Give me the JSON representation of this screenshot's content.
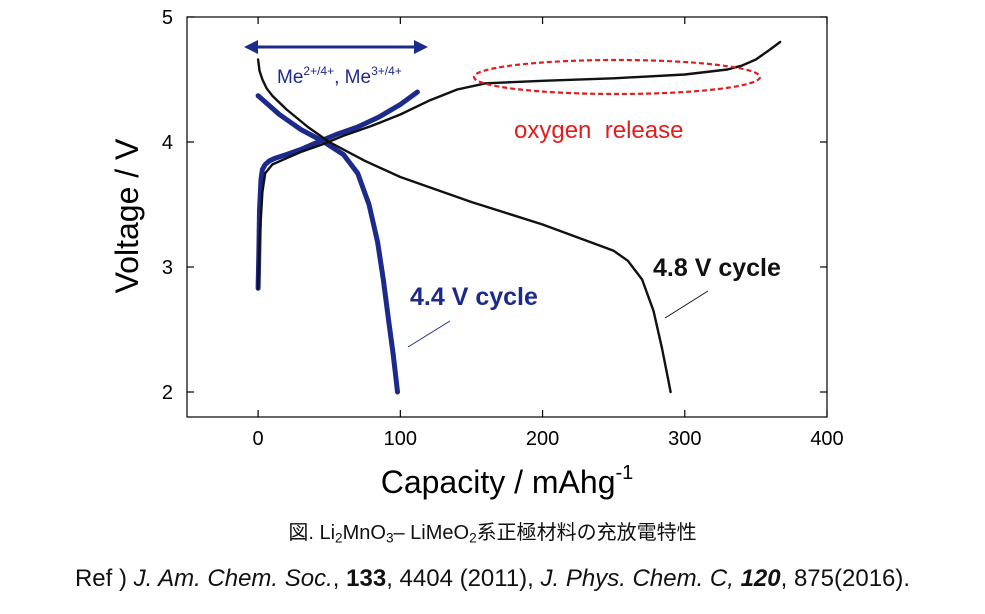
{
  "chart_data": {
    "type": "line",
    "xlabel": "Capacity / mAhg",
    "xlabel_sup": "-1",
    "ylabel": "Voltage / V",
    "xlim": [
      -50,
      400
    ],
    "ylim": [
      1.8,
      5
    ],
    "xticks": [
      0,
      100,
      200,
      300,
      400
    ],
    "yticks": [
      2,
      3,
      4,
      5
    ],
    "grid": false,
    "series": [
      {
        "name": "4.4 V cycle (charge)",
        "color": "#1c2a8c",
        "x": [
          0,
          0.5,
          1,
          2,
          3,
          5,
          8,
          12,
          20,
          30,
          40,
          55,
          70,
          85,
          100,
          112
        ],
        "y": [
          2.83,
          3.1,
          3.45,
          3.7,
          3.78,
          3.82,
          3.85,
          3.87,
          3.9,
          3.94,
          3.99,
          4.06,
          4.12,
          4.2,
          4.3,
          4.4
        ]
      },
      {
        "name": "4.4 V cycle (discharge)",
        "color": "#1c2a8c",
        "x": [
          0,
          5,
          15,
          30,
          45,
          60,
          70,
          78,
          84,
          88,
          92,
          95,
          97,
          98
        ],
        "y": [
          4.37,
          4.32,
          4.22,
          4.1,
          4.01,
          3.9,
          3.75,
          3.5,
          3.2,
          2.9,
          2.55,
          2.3,
          2.1,
          2.0
        ]
      },
      {
        "name": "4.8 V cycle (charge)",
        "color": "#111111",
        "x": [
          0,
          1,
          3,
          5,
          10,
          20,
          30,
          45,
          60,
          80,
          100,
          120,
          140,
          160,
          200,
          250,
          300,
          330,
          340,
          350,
          360,
          367
        ],
        "y": [
          2.83,
          3.2,
          3.6,
          3.75,
          3.82,
          3.87,
          3.92,
          3.98,
          4.05,
          4.13,
          4.22,
          4.33,
          4.42,
          4.47,
          4.49,
          4.51,
          4.54,
          4.58,
          4.61,
          4.66,
          4.74,
          4.8
        ]
      },
      {
        "name": "4.8 V cycle (discharge)",
        "color": "#111111",
        "x": [
          0,
          1,
          3,
          6,
          10,
          20,
          35,
          50,
          75,
          100,
          150,
          200,
          250,
          260,
          270,
          278,
          284,
          288,
          290
        ],
        "y": [
          4.66,
          4.57,
          4.5,
          4.43,
          4.37,
          4.26,
          4.12,
          4.0,
          3.85,
          3.72,
          3.52,
          3.34,
          3.13,
          3.05,
          2.9,
          2.65,
          2.35,
          2.12,
          2.0
        ]
      }
    ],
    "annotations": {
      "arrow_label_base": "Me",
      "arrow_label_sup1": "2+/4+",
      "arrow_label_sep": ", Me",
      "arrow_label_sup2": "3+/4+",
      "oxygen": "oxygen  release",
      "cycle_44": "4.4 V cycle",
      "cycle_48": "4.8 V cycle"
    },
    "colors": {
      "blue": "#1c2a8c",
      "black": "#111111",
      "red": "#e01e1e",
      "arrow": "#1c2a8c"
    }
  },
  "caption": {
    "prefix": "図. Li",
    "sub1": "2",
    "mid1": "MnO",
    "sub2": "3",
    "mid2": "– LiMeO",
    "sub3": "2",
    "suffix": "系正極材料の充放電特性"
  },
  "reference": {
    "lead": "Ref ) ",
    "j1": "J. Am. Chem. Soc.",
    "sep1": ", ",
    "vol1": "133",
    "pages1": ", 4404 (2011), ",
    "j2": "J. Phys. Chem. C,",
    "sep2": " ",
    "vol2": "120",
    "pages2": ", 875(2016)."
  }
}
